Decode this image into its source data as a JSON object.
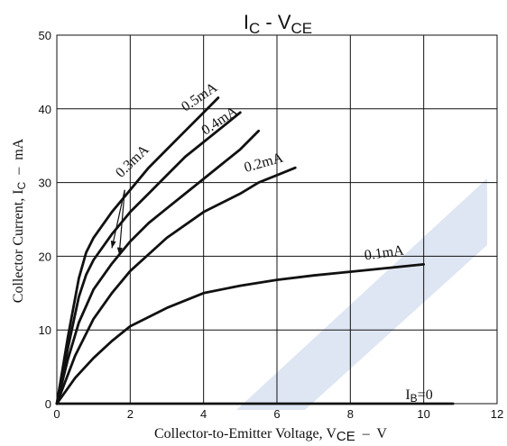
{
  "chart_data": {
    "type": "line",
    "title": {
      "main": "I",
      "sub": "C",
      "mid": " - V",
      "sub2": "CE"
    },
    "xlabel": {
      "text": "Collector-to-Emitter Voltage, V",
      "sub": "CE",
      "unit": "  –  V"
    },
    "ylabel": {
      "text": "Collector Current, I",
      "sub": "C",
      "unit": "  –  mA"
    },
    "xlim": [
      0,
      12
    ],
    "ylim": [
      0,
      50
    ],
    "xticks": [
      0,
      2,
      4,
      6,
      8,
      10,
      12
    ],
    "yticks": [
      0,
      10,
      20,
      30,
      40,
      50
    ],
    "grid": true,
    "line_color": "#111111",
    "watermark_color": "#dfe6f3",
    "series": [
      {
        "name": "0.5mA",
        "x": [
          0,
          0.3,
          0.6,
          0.8,
          1.0,
          1.5,
          2.0,
          2.5,
          3.0,
          3.5,
          4.0,
          4.4
        ],
        "y": [
          0,
          9,
          17,
          20.5,
          22.5,
          26,
          29,
          32,
          34.5,
          37,
          39.5,
          41.5
        ]
      },
      {
        "name": "0.4mA",
        "x": [
          0,
          0.3,
          0.6,
          0.8,
          1.0,
          1.5,
          2.0,
          2.5,
          3.0,
          3.5,
          4.0,
          4.5,
          5.0
        ],
        "y": [
          0,
          7.5,
          14.5,
          17.5,
          19.5,
          23,
          26,
          28.5,
          31,
          33.5,
          35.5,
          37.5,
          39.5
        ]
      },
      {
        "name": "0.3mA",
        "x": [
          0,
          0.3,
          0.6,
          1.0,
          1.5,
          2.0,
          2.5,
          3.0,
          3.5,
          4.0,
          4.5,
          5.0,
          5.5
        ],
        "y": [
          0,
          6,
          11,
          15.5,
          19,
          22,
          24.5,
          26.5,
          28.5,
          30.5,
          32.5,
          34.5,
          37
        ]
      },
      {
        "name": "0.2mA",
        "x": [
          0,
          0.5,
          1.0,
          1.5,
          2.0,
          3.0,
          4.0,
          5.0,
          5.5,
          6.0,
          6.5
        ],
        "y": [
          0,
          6.5,
          11.5,
          15,
          18,
          22.5,
          26,
          28.5,
          30,
          31,
          32
        ]
      },
      {
        "name": "0.1mA",
        "x": [
          0,
          0.5,
          1.0,
          1.5,
          2.0,
          3.0,
          4.0,
          5.0,
          6.0,
          7.0,
          8.0,
          9.0,
          10.0
        ],
        "y": [
          0,
          3.5,
          6.2,
          8.5,
          10.5,
          13,
          15,
          16,
          16.8,
          17.4,
          17.9,
          18.4,
          18.9
        ]
      },
      {
        "name": "IB=0",
        "x": [
          0,
          10.8
        ],
        "y": [
          0,
          0
        ]
      }
    ],
    "annotations": [
      {
        "id": "0.5mA",
        "text": "0.5mA",
        "x": 3.5,
        "y": 39.6,
        "angle": -34
      },
      {
        "id": "0.4mA",
        "text": "0.4mA",
        "x": 4.05,
        "y": 36.4,
        "angle": -34
      },
      {
        "id": "0.3mA",
        "text": "0.3mA",
        "x": 1.75,
        "y": 30.6,
        "angle": -44
      },
      {
        "id": "0.2mA",
        "text": "0.2mA",
        "x": 5.15,
        "y": 31.4,
        "angle": -16
      },
      {
        "id": "0.1mA",
        "text": "0.1mA",
        "x": 8.4,
        "y": 19.5,
        "angle": -8
      },
      {
        "id": "ib0",
        "text": "I",
        "sub": "B",
        "after": "=0",
        "x": 9.5,
        "y": 0.6,
        "angle": 0
      }
    ],
    "arrows": [
      {
        "from": [
          1.85,
          29.0
        ],
        "to": [
          1.7,
          20.2
        ]
      },
      {
        "from": [
          1.85,
          29.0
        ],
        "to": [
          1.5,
          21.1
        ]
      }
    ]
  }
}
